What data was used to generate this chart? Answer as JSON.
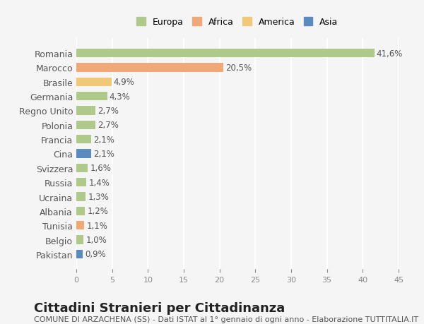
{
  "countries": [
    "Romania",
    "Marocco",
    "Brasile",
    "Germania",
    "Regno Unito",
    "Polonia",
    "Francia",
    "Cina",
    "Svizzera",
    "Russia",
    "Ucraina",
    "Albania",
    "Tunisia",
    "Belgio",
    "Pakistan"
  ],
  "values": [
    41.6,
    20.5,
    4.9,
    4.3,
    2.7,
    2.7,
    2.1,
    2.1,
    1.6,
    1.4,
    1.3,
    1.2,
    1.1,
    1.0,
    0.9
  ],
  "labels": [
    "41,6%",
    "20,5%",
    "4,9%",
    "4,3%",
    "2,7%",
    "2,7%",
    "2,1%",
    "2,1%",
    "1,6%",
    "1,4%",
    "1,3%",
    "1,2%",
    "1,1%",
    "1,0%",
    "0,9%"
  ],
  "colors": [
    "#aec98a",
    "#f0a878",
    "#f0c878",
    "#aec98a",
    "#aec98a",
    "#aec98a",
    "#aec98a",
    "#5b8abf",
    "#aec98a",
    "#aec98a",
    "#aec98a",
    "#aec98a",
    "#f0a878",
    "#aec98a",
    "#5b8abf"
  ],
  "legend": [
    {
      "label": "Europa",
      "color": "#aec98a"
    },
    {
      "label": "Africa",
      "color": "#f0a878"
    },
    {
      "label": "America",
      "color": "#f0c878"
    },
    {
      "label": "Asia",
      "color": "#5b8abf"
    }
  ],
  "xlim": [
    0,
    45
  ],
  "xticks": [
    0,
    5,
    10,
    15,
    20,
    25,
    30,
    35,
    40,
    45
  ],
  "title": "Cittadini Stranieri per Cittadinanza",
  "subtitle": "COMUNE DI ARZACHENA (SS) - Dati ISTAT al 1° gennaio di ogni anno - Elaborazione TUTTITALIA.IT",
  "bg_color": "#f5f5f5",
  "grid_color": "#ffffff",
  "label_fontsize": 8.5,
  "title_fontsize": 13,
  "subtitle_fontsize": 8
}
